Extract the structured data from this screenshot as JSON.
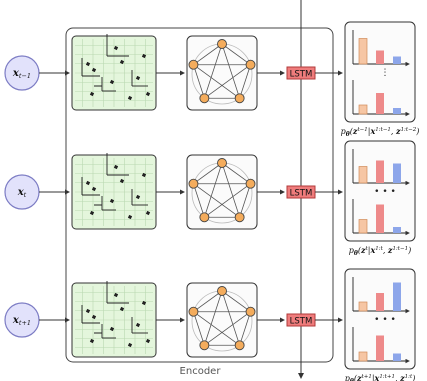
{
  "encoder_label": "Encoder",
  "lstm_label": "LSTM",
  "ellipsis": "⋮",
  "ellipsis_h": "• • •",
  "rows": [
    {
      "input": {
        "base": "x",
        "sub": "t−1"
      },
      "output": {
        "prefix": "p",
        "theta": "θ",
        "open": "(",
        "z": "z",
        "zsup": "t−1",
        "bar": "|",
        "x": "x",
        "xsup": "1:t−1",
        "comma": ", ",
        "z2": "z",
        "z2sup": "1:t−2",
        "close": ")"
      }
    },
    {
      "input": {
        "base": "x",
        "sub": "t"
      },
      "output": {
        "prefix": "p",
        "theta": "θ",
        "open": "(",
        "z": "z",
        "zsup": "t",
        "bar": "|",
        "x": "x",
        "xsup": "1:t",
        "comma": ", ",
        "z2": "z",
        "z2sup": "1:t−1",
        "close": ")"
      }
    },
    {
      "input": {
        "base": "x",
        "sub": "t+1"
      },
      "output": {
        "prefix": "p",
        "theta": "θ",
        "open": "(",
        "z": "z",
        "zsup": "t+1",
        "bar": "|",
        "x": "x",
        "xsup": "1:t+1",
        "comma": ", ",
        "z2": "z",
        "z2sup": "1:t",
        "close": ")"
      }
    }
  ],
  "colors": {
    "node_fill": "#e2e2fb",
    "node_stroke": "#7c7cc4",
    "grid_fill": "#e4f6dc",
    "grid_line": "#b9d8b0",
    "graph_node": "#f4ac5c",
    "lstm_fill": "#ef7c7c",
    "lstm_stroke": "#b23a3a",
    "bar_peach": "#f6c6a4",
    "bar_red": "#ee8a8a",
    "bar_blue": "#8da6ea"
  }
}
